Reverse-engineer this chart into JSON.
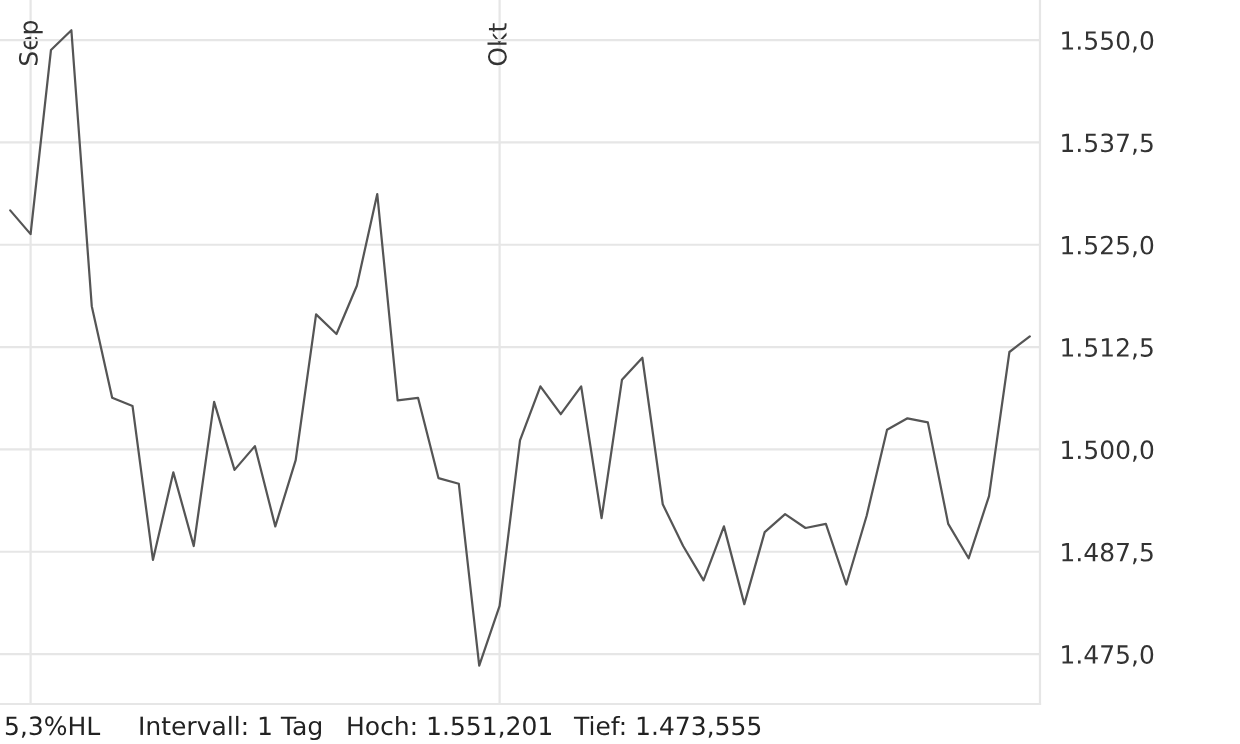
{
  "chart_data": {
    "type": "line",
    "color": "#555555",
    "categories": [
      null,
      "Sep",
      null,
      null,
      null,
      null,
      null,
      null,
      null,
      null,
      null,
      null,
      null,
      null,
      null,
      null,
      null,
      null,
      null,
      null,
      null,
      null,
      null,
      null,
      "Okt",
      null,
      null,
      null,
      null,
      null,
      null,
      null,
      null,
      null,
      null,
      null,
      null,
      null,
      null,
      null,
      null,
      null,
      null,
      null,
      null,
      null,
      null,
      null,
      null,
      null,
      null
    ],
    "values": [
      1529.2,
      1526.3,
      1548.8,
      1551.2,
      1517.5,
      1506.3,
      1505.3,
      1486.5,
      1497.2,
      1488.2,
      1505.8,
      1497.5,
      1500.4,
      1490.6,
      1498.7,
      1516.5,
      1514.1,
      1520.0,
      1531.2,
      1506.0,
      1506.3,
      1496.5,
      1495.8,
      1473.6,
      1480.9,
      1501.1,
      1507.7,
      1504.3,
      1507.7,
      1491.6,
      1508.5,
      1511.2,
      1493.3,
      1488.2,
      1484.0,
      1490.6,
      1481.1,
      1489.9,
      1492.1,
      1490.4,
      1490.9,
      1483.5,
      1491.9,
      1502.4,
      1503.8,
      1503.3,
      1490.9,
      1486.7,
      1494.3,
      1511.9,
      1513.8
    ],
    "ylim": [
      1468.9,
      1554.9
    ],
    "yticks": [
      {
        "value": 1475,
        "label": "1.475,0"
      },
      {
        "value": 1487.5,
        "label": "1.487,5"
      },
      {
        "value": 1500,
        "label": "1.500,0"
      },
      {
        "value": 1512.5,
        "label": "1.512,5"
      },
      {
        "value": 1525,
        "label": "1.525,0"
      },
      {
        "value": 1537.5,
        "label": "1.537,5"
      },
      {
        "value": 1550,
        "label": "1.550,0"
      }
    ],
    "grid": true,
    "legend": false,
    "marker": "none",
    "line_style": "solid",
    "annotations": [
      "5,3%HL",
      "Intervall: 1 Tag",
      "Hoch: 1.551,201",
      "Tief: 1.473,555"
    ]
  }
}
